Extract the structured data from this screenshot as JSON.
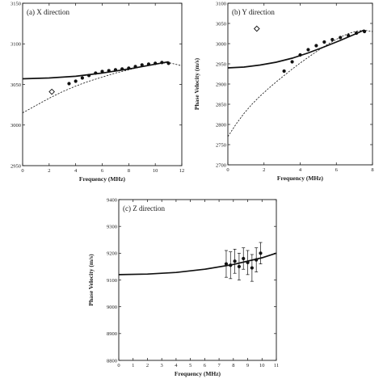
{
  "chart_data": [
    {
      "type": "scatter",
      "title": "(a) X direction",
      "xlabel": "Frequency (MHz)",
      "ylabel": "",
      "xlim": [
        0,
        12
      ],
      "ylim": [
        2950,
        3150
      ],
      "x_ticks": [
        "0",
        "2",
        "4",
        "6",
        "8",
        "10",
        "12"
      ],
      "y_ticks": [
        "2950",
        "3000",
        "3050",
        "3100",
        "3150"
      ],
      "series": [
        {
          "marker": "filled-circle",
          "x": [
            3.5,
            4.0,
            4.5,
            5.0,
            5.5,
            6.0,
            6.5,
            7.0,
            7.5,
            8.0,
            8.5,
            9.0,
            9.5,
            10.0,
            10.5,
            11.0
          ],
          "y": [
            3051,
            3054,
            3058,
            3061,
            3064,
            3066,
            3067,
            3068,
            3069,
            3070,
            3072,
            3074,
            3075,
            3076,
            3077,
            3076
          ]
        },
        {
          "marker": "open-diamond",
          "x": [
            2.2
          ],
          "y": [
            3041
          ]
        },
        {
          "style": "solid-curve",
          "x": [
            0,
            2,
            4,
            6,
            8,
            10,
            11
          ],
          "y": [
            3057,
            3058,
            3060,
            3064,
            3069,
            3075,
            3078
          ]
        },
        {
          "style": "dashed-curve",
          "x": [
            0,
            1,
            2,
            3,
            4,
            5,
            6,
            7,
            8,
            9,
            10,
            11,
            12
          ],
          "y": [
            3015,
            3024,
            3033,
            3041,
            3048,
            3054,
            3059,
            3064,
            3068,
            3072,
            3075,
            3077,
            3073
          ]
        }
      ]
    },
    {
      "type": "scatter",
      "title": "(b) Y direction",
      "xlabel": "Frequency (MHz)",
      "ylabel": "Phase Velocity (m/s)",
      "xlim": [
        0,
        9
      ],
      "ylim": [
        2700,
        3100
      ],
      "x_ticks": [
        "0",
        "2",
        "4",
        "6",
        "8"
      ],
      "y_ticks": [
        "2700",
        "2750",
        "2800",
        "2850",
        "2900",
        "2950",
        "3000",
        "3050",
        "3100"
      ],
      "series": [
        {
          "marker": "filled-circle",
          "x": [
            3.5,
            4.0,
            4.5,
            5.0,
            5.5,
            6.0,
            6.5,
            7.0,
            7.5,
            8.0,
            8.5
          ],
          "y": [
            2932,
            2955,
            2972,
            2985,
            2995,
            3004,
            3010,
            3015,
            3020,
            3026,
            3030
          ]
        },
        {
          "marker": "open-diamond",
          "x": [
            1.8
          ],
          "y": [
            3037
          ]
        },
        {
          "style": "solid-curve",
          "x": [
            0,
            1,
            2,
            3,
            4,
            5,
            6,
            7,
            8,
            8.5
          ],
          "y": [
            2940,
            2942,
            2947,
            2954,
            2964,
            2977,
            2992,
            3008,
            3025,
            3034
          ]
        },
        {
          "style": "dashed-curve",
          "x": [
            0,
            0.5,
            1,
            1.5,
            2,
            2.5,
            3,
            3.5,
            4,
            4.5,
            5,
            5.5,
            6,
            6.5,
            7,
            7.5,
            8,
            8.5,
            9
          ],
          "y": [
            2770,
            2800,
            2827,
            2850,
            2870,
            2888,
            2905,
            2921,
            2937,
            2952,
            2966,
            2980,
            2993,
            3005,
            3016,
            3025,
            3031,
            3033,
            3030
          ]
        }
      ]
    },
    {
      "type": "scatter",
      "title": "(c) Z direction",
      "xlabel": "Frequency (MHz)",
      "ylabel": "Phase Velocity (m/s)",
      "xlim": [
        0,
        11
      ],
      "ylim": [
        8800,
        9400
      ],
      "x_ticks": [
        "0",
        "1",
        "2",
        "3",
        "4",
        "5",
        "6",
        "7",
        "8",
        "9",
        "10",
        "11"
      ],
      "y_ticks": [
        "8800",
        "8900",
        "9000",
        "9100",
        "9200",
        "9300",
        "9400"
      ],
      "series": [
        {
          "marker": "filled-circle-errorbar",
          "x": [
            7.5,
            7.8,
            8.1,
            8.4,
            8.7,
            9.0,
            9.3,
            9.6,
            9.9
          ],
          "y": [
            9160,
            9155,
            9170,
            9150,
            9180,
            9165,
            9145,
            9175,
            9200
          ],
          "error": [
            50,
            50,
            45,
            50,
            40,
            45,
            50,
            45,
            40
          ]
        },
        {
          "style": "solid-curve",
          "x": [
            0,
            2,
            4,
            6,
            8,
            10,
            11
          ],
          "y": [
            9120,
            9122,
            9128,
            9140,
            9158,
            9183,
            9200
          ]
        }
      ]
    }
  ]
}
